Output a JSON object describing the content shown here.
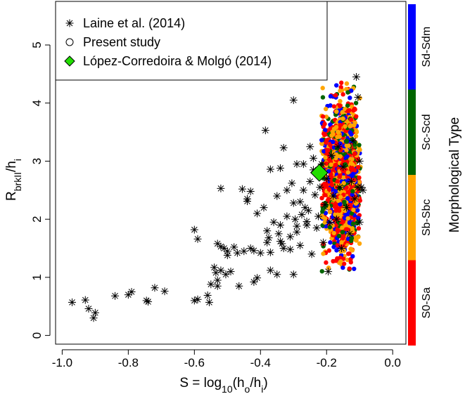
{
  "chart_data": {
    "type": "scatter",
    "xlim": [
      -1.02,
      0.04
    ],
    "ylim": [
      -0.15,
      5.75
    ],
    "x_ticks": [
      -1.0,
      -0.8,
      -0.6,
      -0.4,
      -0.2,
      0.0
    ],
    "x_tick_labels": [
      "-1.0",
      "-0.8",
      "-0.6",
      "-0.4",
      "-0.2",
      "0.0"
    ],
    "y_ticks": [
      0,
      1,
      2,
      3,
      4,
      5
    ],
    "y_tick_labels": [
      "0",
      "1",
      "2",
      "3",
      "4",
      "5"
    ],
    "xlabel": {
      "main": "S = log",
      "sub": "10",
      "rest": "(h",
      "sub2": "o",
      "rest2": "/h",
      "sub3": "i",
      "end": ")"
    },
    "ylabel": {
      "main": "R",
      "sub": "brkII",
      "rest": "/h",
      "sub2": "i"
    },
    "legend": {
      "placement": "top-left",
      "entries": [
        {
          "label": "Laine et al. (2014)",
          "marker": "asterisk"
        },
        {
          "label": "Present study",
          "marker": "open-circle"
        },
        {
          "label": "López-Corredoira & Molgó (2014)",
          "marker": "diamond",
          "color": "#22dd00"
        }
      ]
    },
    "color_bar": {
      "title": "Morphological Type",
      "bands": [
        {
          "label": "S0-Sa",
          "color": "#ff0000"
        },
        {
          "label": "Sb-Sbc",
          "color": "#ffa500"
        },
        {
          "label": "Sc-Scd",
          "color": "#006400"
        },
        {
          "label": "Sd-Sdm",
          "color": "#0000ff"
        }
      ]
    },
    "series": [
      {
        "name": "Laine et al. (2014)",
        "marker": "asterisk",
        "color": "#000000",
        "points": [
          [
            -0.97,
            0.57
          ],
          [
            -0.93,
            0.61
          ],
          [
            -0.92,
            0.46
          ],
          [
            -0.9,
            0.39
          ],
          [
            -0.905,
            0.3
          ],
          [
            -0.84,
            0.68
          ],
          [
            -0.8,
            0.7
          ],
          [
            -0.79,
            0.75
          ],
          [
            -0.74,
            0.58
          ],
          [
            -0.745,
            0.6
          ],
          [
            -0.72,
            0.82
          ],
          [
            -0.69,
            0.76
          ],
          [
            -0.6,
            1.82
          ],
          [
            -0.59,
            1.66
          ],
          [
            -0.59,
            0.62
          ],
          [
            -0.6,
            0.6
          ],
          [
            -0.56,
            0.69
          ],
          [
            -0.555,
            0.57
          ],
          [
            -0.55,
            0.88
          ],
          [
            -0.54,
            1.17
          ],
          [
            -0.535,
            1.08
          ],
          [
            -0.53,
            0.95
          ],
          [
            -0.53,
            0.85
          ],
          [
            -0.53,
            1.58
          ],
          [
            -0.52,
            1.53
          ],
          [
            -0.52,
            2.53
          ],
          [
            -0.51,
            1.5
          ],
          [
            -0.5,
            1.45
          ],
          [
            -0.5,
            1.38
          ],
          [
            -0.52,
            1.12
          ],
          [
            -0.505,
            1.05
          ],
          [
            -0.49,
            1.1
          ],
          [
            -0.48,
            1.52
          ],
          [
            -0.47,
            1.42
          ],
          [
            -0.465,
            0.85
          ],
          [
            -0.455,
            2.52
          ],
          [
            -0.45,
            1.45
          ],
          [
            -0.44,
            2.35
          ],
          [
            -0.44,
            2.31
          ],
          [
            -0.43,
            2.48
          ],
          [
            -0.43,
            1.5
          ],
          [
            -0.42,
            1.46
          ],
          [
            -0.42,
            0.92
          ],
          [
            -0.41,
            0.99
          ],
          [
            -0.41,
            2.1
          ],
          [
            -0.4,
            1.42
          ],
          [
            -0.39,
            2.2
          ],
          [
            -0.385,
            3.53
          ],
          [
            -0.38,
            1.8
          ],
          [
            -0.38,
            1.6
          ],
          [
            -0.375,
            1.68
          ],
          [
            -0.37,
            2.86
          ],
          [
            -0.37,
            1.43
          ],
          [
            -0.37,
            1.12
          ],
          [
            -0.36,
            1.95
          ],
          [
            -0.35,
            2.4
          ],
          [
            -0.35,
            1.05
          ],
          [
            -0.345,
            1.75
          ],
          [
            -0.34,
            1.9
          ],
          [
            -0.34,
            1.62
          ],
          [
            -0.34,
            2.88
          ],
          [
            -0.335,
            1.58
          ],
          [
            -0.33,
            1.5
          ],
          [
            -0.33,
            3.23
          ],
          [
            -0.32,
            2.5
          ],
          [
            -0.32,
            2.05
          ],
          [
            -0.31,
            1.7
          ],
          [
            -0.31,
            1.48
          ],
          [
            -0.305,
            2.62
          ],
          [
            -0.3,
            2.28
          ],
          [
            -0.3,
            1.05
          ],
          [
            -0.3,
            4.05
          ],
          [
            -0.295,
            2.0
          ],
          [
            -0.29,
            1.88
          ],
          [
            -0.29,
            1.78
          ],
          [
            -0.29,
            2.95
          ],
          [
            -0.28,
            1.55
          ],
          [
            -0.28,
            2.3
          ],
          [
            -0.275,
            2.08
          ],
          [
            -0.27,
            2.95
          ],
          [
            -0.27,
            2.5
          ],
          [
            -0.265,
            2.2
          ],
          [
            -0.26,
            1.96
          ],
          [
            -0.26,
            1.9
          ],
          [
            -0.255,
            2.15
          ],
          [
            -0.25,
            3.25
          ],
          [
            -0.25,
            2.65
          ],
          [
            -0.245,
            1.4
          ],
          [
            -0.24,
            2.85
          ],
          [
            -0.24,
            3.05
          ],
          [
            -0.235,
            2.42
          ],
          [
            -0.23,
            1.85
          ],
          [
            -0.225,
            2.05
          ],
          [
            -0.22,
            2.55
          ],
          [
            -0.215,
            2.95
          ],
          [
            -0.21,
            1.6
          ],
          [
            -0.205,
            2.25
          ],
          [
            -0.2,
            2.7
          ],
          [
            -0.195,
            1.1
          ],
          [
            -0.19,
            1.95
          ],
          [
            -0.185,
            3.1
          ],
          [
            -0.18,
            2.4
          ],
          [
            -0.17,
            2.0
          ],
          [
            -0.165,
            3.25
          ],
          [
            -0.16,
            2.55
          ],
          [
            -0.155,
            1.5
          ],
          [
            -0.15,
            2.9
          ],
          [
            -0.14,
            2.2
          ],
          [
            -0.13,
            1.75
          ],
          [
            -0.125,
            2.65
          ],
          [
            -0.12,
            3.35
          ],
          [
            -0.115,
            2.35
          ],
          [
            -0.11,
            4.45
          ],
          [
            -0.105,
            4.1
          ],
          [
            -0.105,
            2.55
          ],
          [
            -0.1,
            3.0
          ],
          [
            -0.1,
            1.95
          ],
          [
            -0.095,
            2.55
          ],
          [
            -0.09,
            2.5
          ]
        ]
      },
      {
        "name": "Present study",
        "marker": "filled-circle",
        "generated_cloud": {
          "x_range": [
            -0.215,
            -0.095
          ],
          "y_range": [
            1.1,
            4.35
          ],
          "count": 1800,
          "color_weights": {
            "#ff0000": 0.36,
            "#ffa500": 0.32,
            "#006400": 0.16,
            "#0000ff": 0.16
          }
        }
      },
      {
        "name": "López-Corredoira & Molgó (2014)",
        "marker": "diamond",
        "color": "#22dd00",
        "points": [
          [
            -0.222,
            2.8
          ]
        ]
      }
    ]
  }
}
